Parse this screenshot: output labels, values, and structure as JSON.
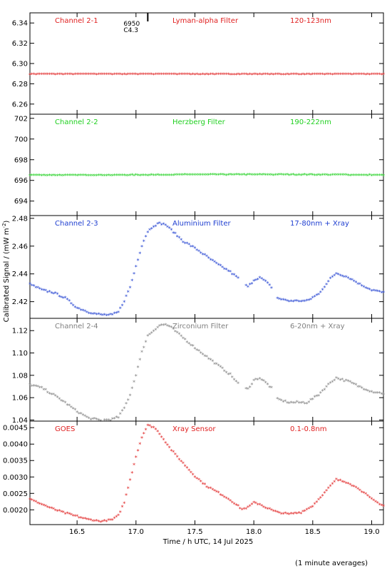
{
  "page": {
    "x_axis_label": "Time / h UTC, 14 Jul 2025",
    "y_axis_label_main": "Calibrated Signal / (mW m",
    "y_axis_label_sup": "-2",
    "y_axis_label_close": ")",
    "footnote": "(1 minute averages)",
    "event_marker": {
      "time": 17.1,
      "line1": "6950",
      "line2": "C4.3"
    }
  },
  "chart_data": [
    {
      "type": "scatter",
      "channel": "Channel 2-1",
      "filter": "Lyman-alpha Filter",
      "band": "120-123nm",
      "color": "#e02020",
      "xlim": [
        16.1,
        19.1
      ],
      "ylim": [
        6.25,
        6.35
      ],
      "yticks": [
        "6.26",
        "6.28",
        "6.30",
        "6.32",
        "6.34"
      ],
      "yticks_values": [
        6.26,
        6.28,
        6.3,
        6.32,
        6.34
      ],
      "knots": [
        [
          16.1,
          6.289
        ],
        [
          19.1,
          6.289
        ]
      ],
      "noise": 0.0002,
      "gaps": []
    },
    {
      "type": "scatter",
      "channel": "Channel 2-2",
      "filter": "Herzberg Filter",
      "band": "190-222nm",
      "color": "#20d020",
      "xlim": [
        16.1,
        19.1
      ],
      "ylim": [
        692.6,
        702.4
      ],
      "yticks": [
        "694",
        "696",
        "698",
        "700",
        "702"
      ],
      "yticks_values": [
        694,
        696,
        698,
        700,
        702
      ],
      "knots": [
        [
          16.1,
          696.45
        ],
        [
          16.8,
          696.45
        ],
        [
          17.5,
          696.5
        ],
        [
          18.5,
          696.5
        ],
        [
          19.1,
          696.45
        ]
      ],
      "noise": 0.03,
      "gaps": []
    },
    {
      "type": "scatter",
      "channel": "Channel 2-3",
      "filter": "Aluminium Filter",
      "band": "17-80nm + Xray",
      "color": "#1e3ed0",
      "xlim": [
        16.1,
        19.1
      ],
      "ylim": [
        2.408,
        2.482
      ],
      "yticks": [
        "2.42",
        "2.44",
        "2.46",
        "2.48"
      ],
      "yticks_values": [
        2.42,
        2.44,
        2.46,
        2.48
      ],
      "knots": [
        [
          16.1,
          2.432
        ],
        [
          16.2,
          2.428
        ],
        [
          16.3,
          2.426
        ],
        [
          16.4,
          2.422
        ],
        [
          16.5,
          2.415
        ],
        [
          16.6,
          2.412
        ],
        [
          16.7,
          2.41
        ],
        [
          16.8,
          2.41
        ],
        [
          16.85,
          2.412
        ],
        [
          16.9,
          2.42
        ],
        [
          16.95,
          2.43
        ],
        [
          17.0,
          2.445
        ],
        [
          17.05,
          2.46
        ],
        [
          17.1,
          2.47
        ],
        [
          17.15,
          2.474
        ],
        [
          17.2,
          2.476
        ],
        [
          17.25,
          2.475
        ],
        [
          17.3,
          2.471
        ],
        [
          17.4,
          2.463
        ],
        [
          17.5,
          2.458
        ],
        [
          17.6,
          2.452
        ],
        [
          17.7,
          2.446
        ],
        [
          17.8,
          2.441
        ],
        [
          17.9,
          2.434
        ],
        [
          17.95,
          2.43
        ],
        [
          18.0,
          2.435
        ],
        [
          18.05,
          2.437
        ],
        [
          18.1,
          2.434
        ],
        [
          18.15,
          2.43
        ],
        [
          18.2,
          2.422
        ],
        [
          18.3,
          2.42
        ],
        [
          18.45,
          2.42
        ],
        [
          18.55,
          2.425
        ],
        [
          18.65,
          2.436
        ],
        [
          18.7,
          2.44
        ],
        [
          18.8,
          2.437
        ],
        [
          18.9,
          2.432
        ],
        [
          19.0,
          2.428
        ],
        [
          19.1,
          2.426
        ]
      ],
      "noise": 0.0006,
      "gaps": [
        [
          17.87,
          17.92
        ],
        [
          18.16,
          18.19
        ]
      ]
    },
    {
      "type": "scatter",
      "channel": "Channel 2-4",
      "filter": "Zirconium Filter",
      "band": "6-20nm + Xray",
      "color": "#808080",
      "xlim": [
        16.1,
        19.1
      ],
      "ylim": [
        1.039,
        1.131
      ],
      "yticks": [
        "1.04",
        "1.06",
        "1.08",
        "1.10",
        "1.12"
      ],
      "yticks_values": [
        1.04,
        1.06,
        1.08,
        1.1,
        1.12
      ],
      "knots": [
        [
          16.1,
          1.071
        ],
        [
          16.2,
          1.068
        ],
        [
          16.3,
          1.062
        ],
        [
          16.4,
          1.055
        ],
        [
          16.5,
          1.047
        ],
        [
          16.6,
          1.041
        ],
        [
          16.7,
          1.039
        ],
        [
          16.8,
          1.04
        ],
        [
          16.85,
          1.042
        ],
        [
          16.9,
          1.05
        ],
        [
          16.95,
          1.062
        ],
        [
          17.0,
          1.08
        ],
        [
          17.05,
          1.1
        ],
        [
          17.1,
          1.115
        ],
        [
          17.2,
          1.124
        ],
        [
          17.25,
          1.125
        ],
        [
          17.3,
          1.122
        ],
        [
          17.4,
          1.113
        ],
        [
          17.5,
          1.104
        ],
        [
          17.6,
          1.096
        ],
        [
          17.7,
          1.088
        ],
        [
          17.8,
          1.08
        ],
        [
          17.9,
          1.068
        ],
        [
          17.95,
          1.067
        ],
        [
          18.0,
          1.075
        ],
        [
          18.05,
          1.077
        ],
        [
          18.1,
          1.073
        ],
        [
          18.15,
          1.068
        ],
        [
          18.2,
          1.058
        ],
        [
          18.3,
          1.055
        ],
        [
          18.45,
          1.055
        ],
        [
          18.55,
          1.062
        ],
        [
          18.65,
          1.073
        ],
        [
          18.7,
          1.077
        ],
        [
          18.8,
          1.074
        ],
        [
          18.9,
          1.069
        ],
        [
          19.0,
          1.065
        ],
        [
          19.1,
          1.063
        ]
      ],
      "noise": 0.0008,
      "gaps": [
        [
          17.87,
          17.92
        ],
        [
          18.16,
          18.19
        ]
      ]
    },
    {
      "type": "scatter",
      "channel": "GOES",
      "filter": "Xray Sensor",
      "band": "0.1-0.8nm",
      "color": "#e02020",
      "xlim": [
        16.1,
        19.1
      ],
      "ylim": [
        0.00155,
        0.0047
      ],
      "yticks": [
        "0.0020",
        "0.0025",
        "0.0030",
        "0.0035",
        "0.0040",
        "0.0045"
      ],
      "yticks_values": [
        0.002,
        0.0025,
        0.003,
        0.0035,
        0.004,
        0.0045
      ],
      "knots": [
        [
          16.1,
          0.0023
        ],
        [
          16.2,
          0.00215
        ],
        [
          16.3,
          0.002
        ],
        [
          16.4,
          0.00188
        ],
        [
          16.5,
          0.00178
        ],
        [
          16.6,
          0.00168
        ],
        [
          16.7,
          0.00163
        ],
        [
          16.8,
          0.00168
        ],
        [
          16.85,
          0.0018
        ],
        [
          16.9,
          0.0022
        ],
        [
          16.95,
          0.0029
        ],
        [
          17.0,
          0.0036
        ],
        [
          17.05,
          0.0042
        ],
        [
          17.1,
          0.00455
        ],
        [
          17.15,
          0.0045
        ],
        [
          17.2,
          0.0043
        ],
        [
          17.3,
          0.0038
        ],
        [
          17.4,
          0.0034
        ],
        [
          17.5,
          0.003
        ],
        [
          17.6,
          0.0027
        ],
        [
          17.7,
          0.0025
        ],
        [
          17.8,
          0.00228
        ],
        [
          17.9,
          0.002
        ],
        [
          17.95,
          0.00205
        ],
        [
          18.0,
          0.0022
        ],
        [
          18.05,
          0.00215
        ],
        [
          18.1,
          0.00205
        ],
        [
          18.2,
          0.0019
        ],
        [
          18.3,
          0.00185
        ],
        [
          18.4,
          0.0019
        ],
        [
          18.5,
          0.0021
        ],
        [
          18.6,
          0.0025
        ],
        [
          18.7,
          0.0029
        ],
        [
          18.8,
          0.0028
        ],
        [
          18.9,
          0.0026
        ],
        [
          19.0,
          0.0023
        ],
        [
          19.1,
          0.0021
        ]
      ],
      "noise": 2e-05,
      "gaps": []
    }
  ],
  "x_axis": {
    "xlim": [
      16.1,
      19.1
    ],
    "ticks": [
      "16.5",
      "17.0",
      "17.5",
      "18.0",
      "18.5",
      "19.0"
    ],
    "tick_values": [
      16.5,
      17.0,
      17.5,
      18.0,
      18.5,
      19.0
    ]
  }
}
